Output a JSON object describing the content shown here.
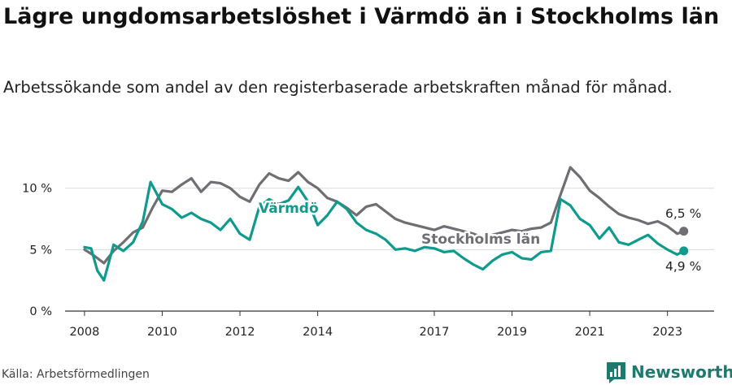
{
  "title": "Lägre ungdomsarbetslöshet i Värmdö än i Stockholms län",
  "subtitle": "Arbetssökande som andel av den registerbaserade arbetskraften månad för månad.",
  "source": "Källa: Arbetsförmedlingen",
  "brand": {
    "name": "Newsworthy",
    "icon": "newsworthy-logo-icon"
  },
  "colors": {
    "stockholm": "#6e6e73",
    "varmdo": "#0e9a8c",
    "grid": "#d9d9d9",
    "axis": "#333333"
  },
  "chart_data": {
    "type": "line",
    "x_unit": "year",
    "xlim": [
      2007.5,
      2024.2
    ],
    "ylim": [
      0,
      11.5
    ],
    "y_ticks": [
      {
        "value": 0,
        "label": "0 %"
      },
      {
        "value": 5,
        "label": "5 %"
      },
      {
        "value": 10,
        "label": "10 %"
      }
    ],
    "x_ticks": [
      {
        "value": 2008,
        "label": "2008"
      },
      {
        "value": 2010,
        "label": "2010"
      },
      {
        "value": 2012,
        "label": "2012"
      },
      {
        "value": 2014,
        "label": "2014"
      },
      {
        "value": 2017,
        "label": "2017"
      },
      {
        "value": 2019,
        "label": "2019"
      },
      {
        "value": 2021,
        "label": "2021"
      },
      {
        "value": 2023,
        "label": "2023"
      }
    ],
    "series": [
      {
        "name": "Stockholms län",
        "label": "Stockholms län",
        "end_label": "6,5 %",
        "end_value": 6.5,
        "x": [
          2008.0,
          2008.25,
          2008.5,
          2008.75,
          2009.0,
          2009.25,
          2009.5,
          2009.75,
          2010.0,
          2010.25,
          2010.5,
          2010.75,
          2011.0,
          2011.25,
          2011.5,
          2011.75,
          2012.0,
          2012.25,
          2012.5,
          2012.75,
          2013.0,
          2013.25,
          2013.5,
          2013.75,
          2014.0,
          2014.25,
          2014.5,
          2014.75,
          2015.0,
          2015.25,
          2015.5,
          2015.75,
          2016.0,
          2016.25,
          2016.5,
          2016.75,
          2017.0,
          2017.25,
          2017.5,
          2017.75,
          2018.0,
          2018.25,
          2018.5,
          2018.75,
          2019.0,
          2019.25,
          2019.5,
          2019.75,
          2020.0,
          2020.25,
          2020.5,
          2020.75,
          2021.0,
          2021.25,
          2021.5,
          2021.75,
          2022.0,
          2022.25,
          2022.5,
          2022.75,
          2023.0,
          2023.25,
          2023.42
        ],
        "values": [
          5.0,
          4.5,
          3.9,
          4.9,
          5.6,
          6.4,
          6.8,
          8.4,
          9.8,
          9.7,
          10.3,
          10.8,
          9.7,
          10.5,
          10.4,
          10.0,
          9.3,
          8.9,
          10.3,
          11.2,
          10.8,
          10.6,
          11.3,
          10.5,
          10.0,
          9.2,
          8.9,
          8.4,
          7.8,
          8.5,
          8.7,
          8.1,
          7.5,
          7.2,
          7.0,
          6.8,
          6.6,
          6.9,
          6.7,
          6.5,
          6.3,
          6.0,
          6.2,
          6.4,
          6.6,
          6.5,
          6.7,
          6.8,
          7.2,
          9.5,
          11.7,
          10.9,
          9.8,
          9.2,
          8.5,
          7.9,
          7.6,
          7.4,
          7.1,
          7.3,
          6.9,
          6.3,
          6.5
        ]
      },
      {
        "name": "Värmdö",
        "label": "Värmdö",
        "end_label": "4,9 %",
        "end_value": 4.9,
        "x": [
          2008.0,
          2008.17,
          2008.33,
          2008.5,
          2008.75,
          2009.0,
          2009.25,
          2009.5,
          2009.7,
          2010.0,
          2010.25,
          2010.5,
          2010.75,
          2011.0,
          2011.25,
          2011.5,
          2011.75,
          2012.0,
          2012.25,
          2012.5,
          2012.75,
          2013.0,
          2013.25,
          2013.5,
          2013.75,
          2014.0,
          2014.25,
          2014.5,
          2014.75,
          2015.0,
          2015.25,
          2015.5,
          2015.75,
          2016.0,
          2016.25,
          2016.5,
          2016.75,
          2017.0,
          2017.25,
          2017.5,
          2017.75,
          2018.0,
          2018.25,
          2018.5,
          2018.75,
          2019.0,
          2019.25,
          2019.5,
          2019.75,
          2020.0,
          2020.25,
          2020.5,
          2020.75,
          2021.0,
          2021.25,
          2021.5,
          2021.75,
          2022.0,
          2022.25,
          2022.5,
          2022.75,
          2023.0,
          2023.25,
          2023.42
        ],
        "values": [
          5.2,
          5.1,
          3.3,
          2.5,
          5.4,
          4.9,
          5.6,
          7.3,
          10.5,
          8.7,
          8.3,
          7.6,
          8.0,
          7.5,
          7.2,
          6.6,
          7.5,
          6.3,
          5.8,
          8.5,
          9.1,
          8.7,
          9.0,
          10.1,
          8.9,
          7.0,
          7.8,
          8.9,
          8.3,
          7.2,
          6.6,
          6.3,
          5.8,
          5.0,
          5.1,
          4.9,
          5.2,
          5.1,
          4.8,
          4.9,
          4.3,
          3.8,
          3.4,
          4.1,
          4.6,
          4.8,
          4.3,
          4.2,
          4.8,
          4.9,
          9.1,
          8.6,
          7.5,
          7.0,
          5.9,
          6.8,
          5.6,
          5.4,
          5.8,
          6.2,
          5.5,
          5.0,
          4.6,
          4.9
        ]
      }
    ]
  }
}
